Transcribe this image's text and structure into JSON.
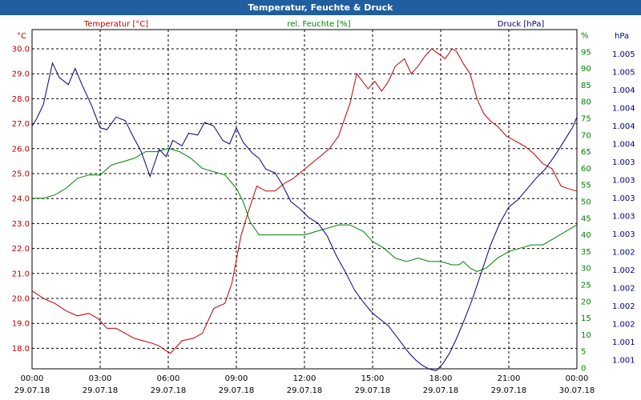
{
  "title": "Temperatur, Feuchte & Druck",
  "chart_data": {
    "type": "line",
    "grid": true,
    "x_tick_labels": [
      [
        "00:00",
        "29.07.18"
      ],
      [
        "03:00",
        "29.07.18"
      ],
      [
        "06:00",
        "29.07.18"
      ],
      [
        "09:00",
        "29.07.18"
      ],
      [
        "12:00",
        "29.07.18"
      ],
      [
        "15:00",
        "29.07.18"
      ],
      [
        "18:00",
        "29.07.18"
      ],
      [
        "21:00",
        "29.07.18"
      ],
      [
        "00:00",
        "30.07.18"
      ]
    ],
    "axes": {
      "temperature": {
        "label": "Temperatur [°C]",
        "unit": "°C",
        "side": "left",
        "color": "#c00000",
        "ylim": [
          17.0,
          30.5
        ],
        "ticks": [
          "18.0",
          "19.0",
          "20.0",
          "21.0",
          "22.0",
          "23.0",
          "24.0",
          "25.0",
          "26.0",
          "27.0",
          "28.0",
          "29.0",
          "30.0"
        ]
      },
      "humidity": {
        "label": "rel. Feuchte [%]",
        "unit": "%",
        "side": "right",
        "color": "#008000",
        "ylim": [
          0,
          100
        ],
        "ticks": [
          "0",
          "5",
          "10",
          "15",
          "20",
          "25",
          "30",
          "35",
          "40",
          "45",
          "50",
          "55",
          "60",
          "65",
          "70",
          "75",
          "80",
          "85",
          "90",
          "95",
          "%"
        ]
      },
      "pressure": {
        "label": "Druck [hPa]",
        "unit": "hPa",
        "side": "right",
        "color": "#000080",
        "tick_values": [
          1,
          2,
          3,
          4,
          5,
          6,
          7,
          8,
          9,
          10,
          11,
          12,
          13,
          14,
          15,
          16,
          17,
          18
        ],
        "ticks": [
          "1.001",
          "1.001",
          "1.002",
          "1.002",
          "1.002",
          "1.002",
          "1.002",
          "1.003",
          "1.003",
          "1.003",
          "1.003",
          "1.003",
          "1.004",
          "1.004",
          "1.004",
          "1.004",
          "1.005",
          "1.005"
        ]
      }
    },
    "series": [
      {
        "name": "Temperatur [°C]",
        "axis": "temperature",
        "color": "#c00000",
        "x": [
          0,
          0.5,
          1,
          1.5,
          2,
          2.5,
          2.9,
          3.3,
          3.7,
          4.1,
          4.5,
          4.9,
          5.3,
          5.6,
          5.9,
          6.1,
          6.6,
          7.1,
          7.5,
          8,
          8.5,
          8.8,
          9.2,
          9.5,
          9.9,
          10.3,
          10.7,
          11.1,
          11.5,
          11.9,
          12.3,
          12.7,
          13.1,
          13.5,
          14,
          14.3,
          14.8,
          15.1,
          15.4,
          15.7,
          16,
          16.4,
          16.7,
          17,
          17.3,
          17.6,
          17.9,
          18.2,
          18.5,
          18.7,
          19,
          19.3,
          19.6,
          19.9,
          20.2,
          20.5,
          20.9,
          21.3,
          21.7,
          22.1,
          22.5,
          22.9,
          23.3,
          23.6,
          24
        ],
        "y": [
          20.3,
          20.0,
          19.8,
          19.5,
          19.3,
          19.4,
          19.2,
          18.8,
          18.8,
          18.6,
          18.4,
          18.3,
          18.2,
          18.1,
          17.9,
          17.8,
          18.3,
          18.4,
          18.6,
          19.6,
          19.8,
          20.6,
          22.5,
          23.4,
          24.5,
          24.3,
          24.3,
          24.6,
          24.8,
          25.1,
          25.4,
          25.7,
          26.0,
          26.5,
          27.8,
          29.0,
          28.4,
          28.7,
          28.3,
          28.7,
          29.3,
          29.6,
          29.0,
          29.3,
          29.7,
          30.0,
          29.8,
          29.6,
          30.0,
          29.9,
          29.4,
          29.0,
          28.0,
          27.4,
          27.1,
          26.9,
          26.5,
          26.3,
          26.1,
          25.8,
          25.4,
          25.2,
          24.5,
          24.4,
          24.3
        ]
      },
      {
        "name": "rel. Feuchte [%]",
        "axis": "humidity",
        "color": "#008000",
        "x": [
          0,
          0.5,
          1,
          1.5,
          2,
          2.5,
          3,
          3.5,
          4,
          4.5,
          5,
          5.5,
          6,
          6.5,
          7,
          7.5,
          8,
          8.5,
          9,
          9.3,
          9.6,
          10,
          10.5,
          11,
          11.5,
          12,
          12.5,
          13,
          13.5,
          14,
          14.3,
          14.6,
          15,
          15.5,
          16,
          16.5,
          17,
          17.5,
          18,
          18.5,
          18.8,
          19,
          19.3,
          19.6,
          20,
          20.5,
          21,
          21.5,
          22,
          22.5,
          23,
          23.5,
          24
        ],
        "y": [
          51,
          51,
          52,
          54,
          57,
          58,
          58,
          61,
          62,
          63,
          65,
          65,
          66,
          65,
          63,
          60,
          59,
          58,
          54,
          50,
          44,
          40,
          40,
          40,
          40,
          40,
          41,
          42,
          43,
          43,
          42,
          41,
          38,
          36,
          33,
          32,
          33,
          32,
          32,
          31,
          31,
          32,
          30,
          29,
          30,
          33,
          35,
          36,
          37,
          37,
          39,
          41,
          43
        ]
      },
      {
        "name": "Druck [hPa]",
        "axis": "pressure",
        "color": "#000080",
        "x": [
          0,
          0.2,
          0.5,
          0.9,
          1.2,
          1.6,
          1.9,
          2.2,
          2.6,
          3,
          3.3,
          3.7,
          4.1,
          4.5,
          4.8,
          5.2,
          5.6,
          5.9,
          6.2,
          6.6,
          6.9,
          7.3,
          7.6,
          8,
          8.4,
          8.7,
          9,
          9.3,
          9.7,
          10,
          10.3,
          10.7,
          11,
          11.4,
          11.8,
          12.2,
          12.6,
          13,
          13.4,
          13.8,
          14.2,
          14.6,
          15,
          15.4,
          15.7,
          16,
          16.3,
          16.6,
          16.9,
          17.2,
          17.5,
          17.8,
          18.1,
          18.4,
          18.7,
          19,
          19.4,
          19.8,
          20.2,
          20.6,
          21,
          21.4,
          21.8,
          22.2,
          22.6,
          23,
          23.4,
          23.8,
          24
        ],
        "y": [
          14.0,
          14.4,
          15.2,
          17.5,
          16.7,
          16.3,
          17.2,
          16.3,
          15.2,
          13.9,
          13.8,
          14.5,
          14.3,
          13.3,
          12.6,
          11.2,
          12.7,
          12.3,
          13.2,
          12.9,
          13.6,
          13.5,
          14.2,
          14.0,
          13.2,
          13.0,
          13.9,
          13.1,
          12.5,
          12.2,
          11.6,
          11.4,
          10.8,
          9.8,
          9.4,
          8.9,
          8.6,
          7.9,
          6.8,
          5.9,
          4.9,
          4.2,
          3.6,
          3.2,
          2.9,
          2.4,
          1.9,
          1.4,
          1.0,
          0.7,
          0.5,
          0.4,
          0.8,
          1.4,
          2.2,
          3.1,
          4.4,
          5.9,
          7.4,
          8.6,
          9.5,
          9.9,
          10.5,
          11.1,
          11.6,
          12.3,
          13.1,
          13.9,
          14.5
        ]
      }
    ]
  }
}
